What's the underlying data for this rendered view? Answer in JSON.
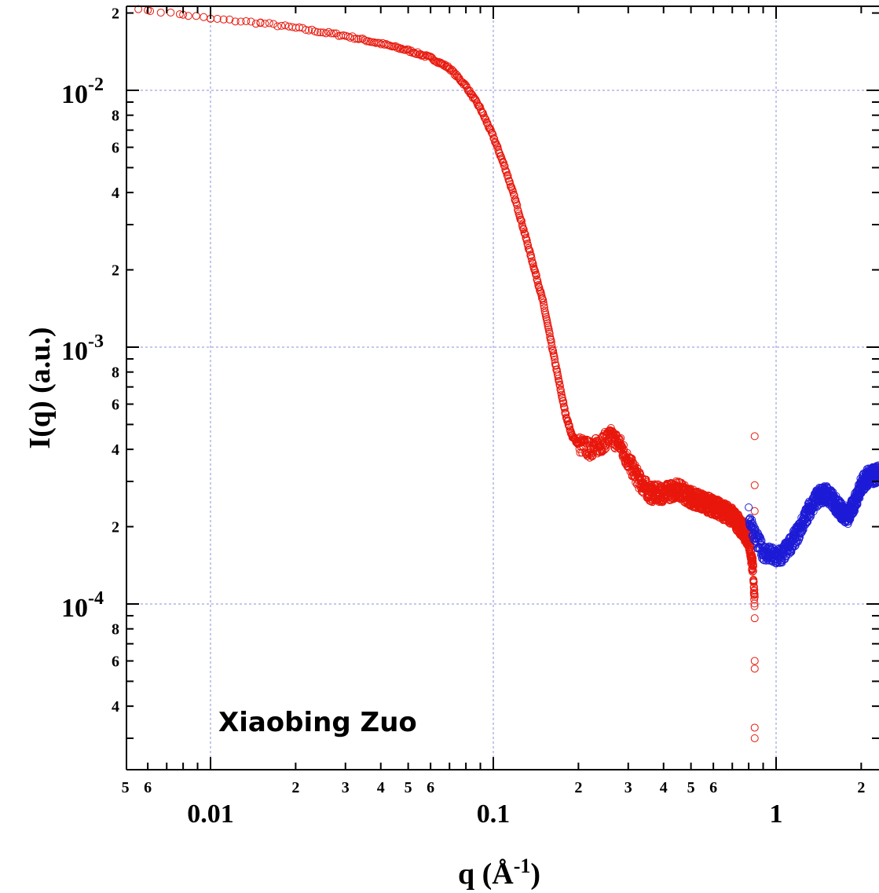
{
  "chart_data": {
    "type": "scatter",
    "xscale": "log",
    "yscale": "log",
    "xlim": [
      0.005,
      2.5
    ],
    "ylim": [
      3e-05,
      0.021
    ],
    "grid": true,
    "xlabel": "q (Å",
    "xlabel_sup": "-1",
    "xlabel_close": ")",
    "ylabel": "I(q) (a.u.)",
    "annotation": "Xiaobing Zuo",
    "x_major_ticks": [
      {
        "value": 0.01,
        "label": "0.01"
      },
      {
        "value": 0.1,
        "label": "0.1"
      },
      {
        "value": 1,
        "label": "1"
      }
    ],
    "x_minor_labels": [
      {
        "value": 0.005,
        "label": "5"
      },
      {
        "value": 0.006,
        "label": "6"
      },
      {
        "value": 0.02,
        "label": "2"
      },
      {
        "value": 0.03,
        "label": "3"
      },
      {
        "value": 0.04,
        "label": "4"
      },
      {
        "value": 0.05,
        "label": "5"
      },
      {
        "value": 0.06,
        "label": "6"
      },
      {
        "value": 0.2,
        "label": "2"
      },
      {
        "value": 0.3,
        "label": "3"
      },
      {
        "value": 0.4,
        "label": "4"
      },
      {
        "value": 0.5,
        "label": "5"
      },
      {
        "value": 0.6,
        "label": "6"
      },
      {
        "value": 2,
        "label": "2"
      }
    ],
    "y_major_ticks": [
      {
        "value": 0.01,
        "base": "10",
        "exp": "-2"
      },
      {
        "value": 0.001,
        "base": "10",
        "exp": "-3"
      },
      {
        "value": 0.0001,
        "base": "10",
        "exp": "-4"
      }
    ],
    "y_minor_labels": [
      {
        "value": 0.02,
        "label": "2"
      },
      {
        "value": 0.008,
        "label": "8"
      },
      {
        "value": 0.006,
        "label": "6"
      },
      {
        "value": 0.004,
        "label": "4"
      },
      {
        "value": 0.002,
        "label": "2"
      },
      {
        "value": 0.0008,
        "label": "8"
      },
      {
        "value": 0.0006,
        "label": "6"
      },
      {
        "value": 0.0004,
        "label": "4"
      },
      {
        "value": 0.0002,
        "label": "2"
      },
      {
        "value": 8e-05,
        "label": "8"
      },
      {
        "value": 6e-05,
        "label": "6"
      },
      {
        "value": 4e-05,
        "label": "4"
      }
    ],
    "series": [
      {
        "color": "#e8170c",
        "marker": "open-circle",
        "curve": [
          [
            0.005,
            0.0205
          ],
          [
            0.006,
            0.0205
          ],
          [
            0.008,
            0.0197
          ],
          [
            0.01,
            0.019
          ],
          [
            0.015,
            0.0183
          ],
          [
            0.02,
            0.0175
          ],
          [
            0.03,
            0.0163
          ],
          [
            0.04,
            0.0152
          ],
          [
            0.05,
            0.0143
          ],
          [
            0.06,
            0.0134
          ],
          [
            0.07,
            0.0122
          ],
          [
            0.08,
            0.0104
          ],
          [
            0.09,
            0.0085
          ],
          [
            0.1,
            0.0066
          ],
          [
            0.11,
            0.005
          ],
          [
            0.12,
            0.0037
          ],
          [
            0.13,
            0.0027
          ],
          [
            0.14,
            0.002
          ],
          [
            0.15,
            0.0015
          ],
          [
            0.16,
            0.00105
          ],
          [
            0.17,
            0.00075
          ],
          [
            0.18,
            0.00055
          ],
          [
            0.19,
            0.00045
          ],
          [
            0.2,
            0.00042
          ],
          [
            0.22,
            0.0004
          ],
          [
            0.24,
            0.00042
          ],
          [
            0.26,
            0.00045
          ],
          [
            0.28,
            0.00042
          ],
          [
            0.3,
            0.00036
          ],
          [
            0.33,
            0.0003
          ],
          [
            0.36,
            0.00027
          ],
          [
            0.4,
            0.00027
          ],
          [
            0.45,
            0.00028
          ],
          [
            0.5,
            0.00026
          ],
          [
            0.55,
            0.00025
          ],
          [
            0.6,
            0.00024
          ],
          [
            0.65,
            0.00023
          ],
          [
            0.7,
            0.00022
          ],
          [
            0.75,
            0.0002
          ],
          [
            0.8,
            0.00018
          ],
          [
            0.83,
            0.000135
          ],
          [
            0.84,
            0.0001
          ]
        ],
        "outliers": [
          [
            0.84,
            0.00045
          ],
          [
            0.84,
            0.00029
          ],
          [
            0.84,
            0.00023
          ],
          [
            0.84,
            0.00018
          ],
          [
            0.84,
            8.8e-05
          ],
          [
            0.84,
            6e-05
          ],
          [
            0.84,
            5.6e-05
          ],
          [
            0.84,
            3.3e-05
          ],
          [
            0.84,
            3e-05
          ]
        ]
      },
      {
        "color": "#1d1bd6",
        "marker": "open-circle",
        "curve": [
          [
            0.8,
            0.00022
          ],
          [
            0.85,
            0.00018
          ],
          [
            0.9,
            0.00016
          ],
          [
            0.95,
            0.000155
          ],
          [
            1.0,
            0.000152
          ],
          [
            1.05,
            0.000155
          ],
          [
            1.1,
            0.000165
          ],
          [
            1.2,
            0.00019
          ],
          [
            1.3,
            0.00023
          ],
          [
            1.4,
            0.00026
          ],
          [
            1.5,
            0.00027
          ],
          [
            1.6,
            0.00025
          ],
          [
            1.7,
            0.00023
          ],
          [
            1.8,
            0.00022
          ],
          [
            1.9,
            0.00025
          ],
          [
            2.0,
            0.00029
          ],
          [
            2.1,
            0.00031
          ],
          [
            2.3,
            0.00032
          ],
          [
            2.5,
            0.00031
          ]
        ]
      }
    ]
  }
}
